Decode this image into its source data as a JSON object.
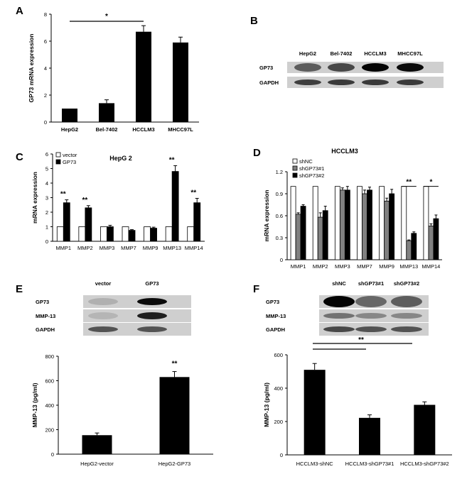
{
  "panels": {
    "A": "A",
    "B": "B",
    "C": "C",
    "D": "D",
    "E": "E",
    "F": "F"
  },
  "chart_data": [
    {
      "id": "A",
      "type": "bar",
      "categories": [
        "HepG2",
        "Bel-7402",
        "HCCLM3",
        "MHCC97L"
      ],
      "values": [
        1.0,
        1.4,
        6.7,
        5.9
      ],
      "errors": [
        0.0,
        0.25,
        0.45,
        0.4
      ],
      "ylabel": "GP73 mRNA expression",
      "ylim": [
        0,
        8
      ],
      "yticks": [
        0,
        2,
        4,
        6,
        8
      ],
      "significance": [
        {
          "from": 0,
          "to": 2,
          "label": "*"
        }
      ]
    },
    {
      "id": "C",
      "type": "bar",
      "title": "HepG 2",
      "categories": [
        "MMP1",
        "MMP2",
        "MMP3",
        "MMP7",
        "MMP9",
        "MMP13",
        "MMP14"
      ],
      "series": [
        {
          "name": "vector",
          "color": "#ffffff",
          "values": [
            1,
            1,
            1,
            1,
            1,
            1,
            1
          ],
          "errors": [
            0,
            0,
            0,
            0,
            0,
            0,
            0
          ]
        },
        {
          "name": "GP73",
          "color": "#000000",
          "values": [
            2.65,
            2.3,
            1.0,
            0.75,
            0.9,
            4.8,
            2.65
          ],
          "errors": [
            0.2,
            0.15,
            0.1,
            0.05,
            0.07,
            0.4,
            0.3
          ]
        }
      ],
      "ylabel": "mRNA expression",
      "ylim": [
        0,
        6
      ],
      "yticks": [
        0,
        1,
        2,
        3,
        4,
        5,
        6
      ],
      "significance_marks": [
        "**",
        "**",
        "",
        "",
        "",
        "**",
        "**"
      ]
    },
    {
      "id": "D",
      "type": "bar",
      "title": "HCCLM3",
      "categories": [
        "MMP1",
        "MMP2",
        "MMP3",
        "MMP7",
        "MMP9",
        "MMP13",
        "MMP14"
      ],
      "series": [
        {
          "name": "shNC",
          "color": "#ffffff",
          "values": [
            1,
            1,
            1,
            1,
            1,
            1,
            1
          ],
          "errors": [
            0,
            0,
            0,
            0,
            0,
            0,
            0
          ]
        },
        {
          "name": "shGP73#1",
          "color": "#808080",
          "values": [
            0.62,
            0.58,
            0.95,
            0.9,
            0.8,
            0.26,
            0.46
          ],
          "errors": [
            0.02,
            0.06,
            0.03,
            0.05,
            0.04,
            0.01,
            0.03
          ]
        },
        {
          "name": "shGP73#2",
          "color": "#000000",
          "values": [
            0.73,
            0.67,
            0.95,
            0.95,
            0.9,
            0.36,
            0.56
          ],
          "errors": [
            0.02,
            0.06,
            0.05,
            0.04,
            0.06,
            0.02,
            0.05
          ]
        }
      ],
      "ylabel": "mRNA expression",
      "ylim": [
        0,
        1.2
      ],
      "yticks": [
        "0",
        "0.3",
        "0.6",
        "0.9",
        "1.2"
      ],
      "ytick_values": [
        0,
        0.3,
        0.6,
        0.9,
        1.2
      ],
      "significance_marks": [
        "",
        "",
        "",
        "",
        "",
        "**",
        "*"
      ]
    },
    {
      "id": "E",
      "type": "bar",
      "categories": [
        "HepG2-vector",
        "HepG2-GP73"
      ],
      "values": [
        155,
        630
      ],
      "errors": [
        18,
        45
      ],
      "ylabel": "MMP-13 (pg/ml)",
      "ylim": [
        0,
        800
      ],
      "yticks": [
        0,
        200,
        400,
        600,
        800
      ],
      "significance_marks": [
        "",
        "**"
      ]
    },
    {
      "id": "F",
      "type": "bar",
      "categories": [
        "HCCLM3-shNC",
        "HCCLM3-shGP73#1",
        "HCCLM3-shGP73#2"
      ],
      "values": [
        510,
        222,
        300
      ],
      "errors": [
        38,
        18,
        18
      ],
      "ylabel": "MMP-13 (pg/ml)",
      "ylim": [
        0,
        600
      ],
      "yticks": [
        0,
        200,
        400,
        600
      ],
      "significance_label": "**"
    }
  ],
  "blots": {
    "B": {
      "lanes": [
        "HepG2",
        "Bel-7402",
        "HCCLM3",
        "MHCC97L"
      ],
      "rows": [
        "GP73",
        "GAPDH"
      ]
    },
    "E": {
      "lanes": [
        "vector",
        "GP73"
      ],
      "rows": [
        "GP73",
        "MMP-13",
        "GAPDH"
      ]
    },
    "F": {
      "lanes": [
        "shNC",
        "shGP73#1",
        "shGP73#2"
      ],
      "rows": [
        "GP73",
        "MMP-13",
        "GAPDH"
      ]
    }
  }
}
